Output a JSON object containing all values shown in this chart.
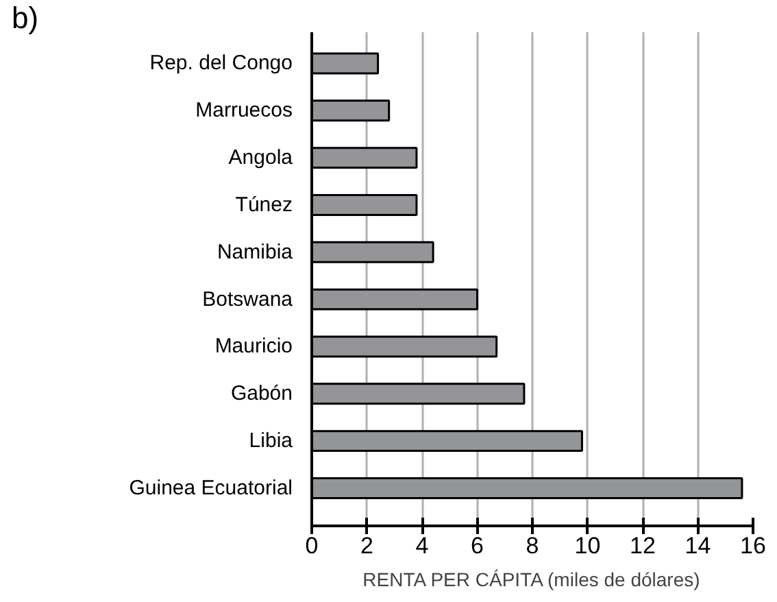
{
  "chart_data": {
    "type": "bar",
    "orientation": "horizontal",
    "categories": [
      "Rep. del Congo",
      "Marruecos",
      "Angola",
      "Túnez",
      "Namibia",
      "Botswana",
      "Mauricio",
      "Gabón",
      "Libia",
      "Guinea Ecuatorial"
    ],
    "values": [
      2.4,
      2.8,
      3.8,
      3.8,
      4.4,
      6.0,
      6.7,
      7.7,
      9.8,
      15.6
    ],
    "color": "#939598",
    "xlabel": "RENTA PER CÁPITA (miles de dólares)",
    "xlim": [
      0,
      16
    ],
    "xticks": [
      0,
      2,
      4,
      6,
      8,
      10,
      12,
      14,
      16
    ],
    "grid": "x",
    "annotations": [
      "b)"
    ]
  }
}
